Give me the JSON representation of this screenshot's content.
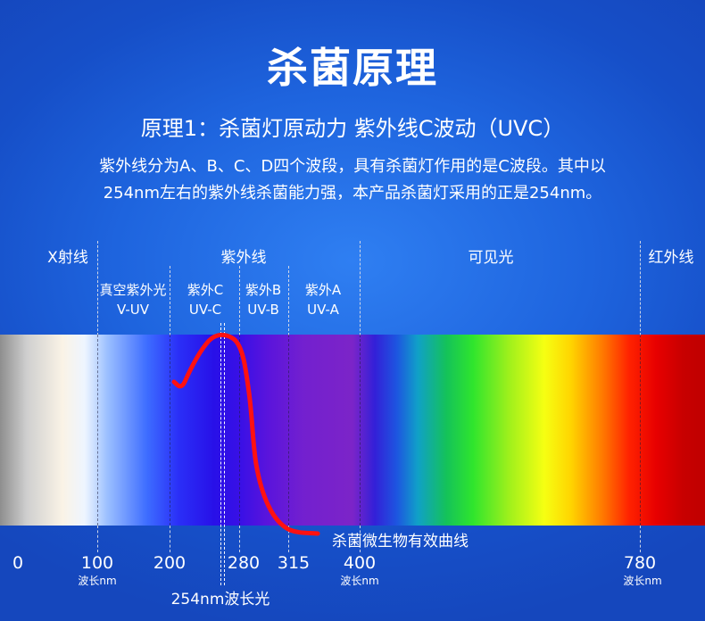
{
  "title": "杀菌原理",
  "subtitle": "原理1：杀菌灯原动力 紫外线C波动（UVC）",
  "description": {
    "line1": "紫外线分为A、B、C、D四个波段，具有杀菌灯作用的是C波段。其中以",
    "line2": "254nm左右的紫外线杀菌能力强，本产品杀菌灯采用的正是254nm。"
  },
  "regions": {
    "xray": "X射线",
    "uv": "紫外线",
    "visible": "可见光",
    "infrared": "红外线"
  },
  "uv_bands": [
    {
      "name": "真空紫外光",
      "code": "V-UV"
    },
    {
      "name": "紫外C",
      "code": "UV-C"
    },
    {
      "name": "紫外B",
      "code": "UV-B"
    },
    {
      "name": "紫外A",
      "code": "UV-A"
    }
  ],
  "wavelength_ticks": [
    "0",
    "100",
    "200",
    "280",
    "315",
    "400",
    "780"
  ],
  "unit_label": "波长nm",
  "curve_label": "杀菌微生物有效曲线",
  "wavelength_254_label": "254nm波长光",
  "colors": {
    "background": "#1e64de",
    "curve": "#ff1111"
  }
}
